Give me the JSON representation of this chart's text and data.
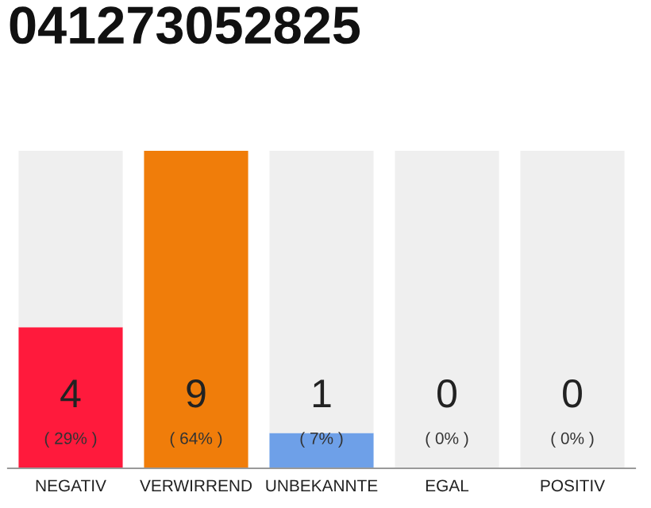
{
  "chart_data": {
    "type": "bar",
    "title": "041273052825",
    "categories": [
      "NEGATIV",
      "VERWIRREND",
      "UNBEKANNTE",
      "EGAL",
      "POSITIV"
    ],
    "stacked": true,
    "series": [
      {
        "color": "#ff1a3c",
        "colors": [
          "#ff1a3c",
          "#f07d0a",
          "#6ea0e8",
          "#6ea0e8",
          "#6ea0e8"
        ],
        "values": [
          4,
          9,
          1,
          0,
          0
        ],
        "value_labels": [
          "4\n( 29% )",
          "9\n( 64% )",
          "1\n( 7% )",
          null,
          null
        ]
      },
      {
        "color": "#efefef",
        "values": [
          5,
          0,
          8,
          9,
          9
        ]
      }
    ],
    "annotations": [
      {
        "text": "0\n( 0% )",
        "x": "EGAL",
        "y": 0
      },
      {
        "text": "0\n( 0% )",
        "x": "POSITIV",
        "y": 0
      }
    ],
    "ylim": [
      0,
      9
    ],
    "tick_labels": "x",
    "grid": false,
    "legend": false
  }
}
